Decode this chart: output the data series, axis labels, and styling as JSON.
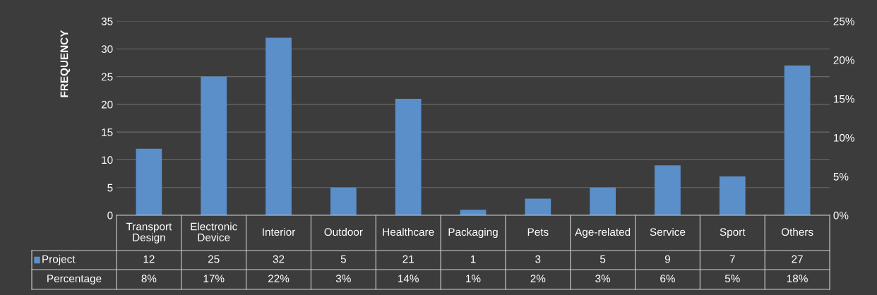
{
  "chart_data": {
    "type": "bar",
    "ylabel": "FREQUENCY",
    "categories": [
      "Transport\nDesign",
      "Electronic\nDevice",
      "Interior",
      "Outdoor",
      "Healthcare",
      "Packaging",
      "Pets",
      "Age-related",
      "Service",
      "Sport",
      "Others"
    ],
    "series": [
      {
        "name": "Project",
        "color": "#5b8fc9",
        "values": [
          12,
          25,
          32,
          5,
          21,
          1,
          3,
          5,
          9,
          7,
          27
        ]
      }
    ],
    "annotations": [
      "Percentage",
      "8%",
      "17%",
      "22%",
      "3%",
      "14%",
      "1%",
      "2%",
      "3%",
      "6%",
      "5%",
      "18%"
    ],
    "ylim": [
      0,
      35
    ],
    "yticks": [
      0,
      5,
      10,
      15,
      20,
      25,
      30,
      35
    ],
    "y2lim": [
      0,
      25
    ],
    "y2ticks": [
      {
        "value": 0,
        "label": "0%"
      },
      {
        "value": 5,
        "label": "5%"
      },
      {
        "value": 10,
        "label": "10%"
      },
      {
        "value": 15,
        "label": "15%"
      },
      {
        "value": 20,
        "label": "20%"
      },
      {
        "value": 25,
        "label": "25%"
      }
    ],
    "grid": "y",
    "legend": "bottom",
    "data_labels": true
  }
}
